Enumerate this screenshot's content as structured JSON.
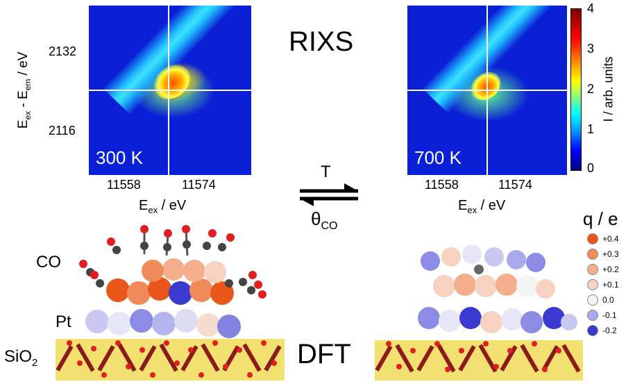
{
  "rixs": {
    "title": "RIXS",
    "panels": [
      {
        "temperature": "300 K",
        "x_ticks": [
          "11558",
          "11574"
        ],
        "xlabel_main": "E",
        "xlabel_sub": "ex",
        "xlabel_unit": " / eV"
      },
      {
        "temperature": "700 K",
        "x_ticks": [
          "11558",
          "11574"
        ],
        "xlabel_main": "E",
        "xlabel_sub": "ex",
        "xlabel_unit": " / eV"
      }
    ],
    "y_ticks": [
      "2132",
      "2116"
    ],
    "ylabel": {
      "e1": "E",
      "s1": "ex",
      "mid": " - E",
      "s2": "em",
      "unit": " / eV"
    },
    "colorbar": {
      "ticks": [
        "4",
        "3",
        "2",
        "1",
        "0"
      ],
      "label": "I / arb. units",
      "colors": [
        "#000080",
        "#0000ff",
        "#00a0ff",
        "#00ffff",
        "#80ff80",
        "#ffff00",
        "#ff8000",
        "#ff0000",
        "#800000"
      ]
    }
  },
  "equilibrium": {
    "forward": "T",
    "reverse_main": "θ",
    "reverse_sub": "CO"
  },
  "dft": {
    "title": "DFT",
    "labels": {
      "co": "CO",
      "pt": "Pt",
      "sio2_main": "SiO",
      "sio2_sub": "2"
    }
  },
  "charge_legend": {
    "title": "q / e",
    "items": [
      {
        "label": "+0.4",
        "color": "#e8561a"
      },
      {
        "label": "+0.3",
        "color": "#f08a5a"
      },
      {
        "label": "+0.2",
        "color": "#f4ae8c"
      },
      {
        "label": "+0.1",
        "color": "#f7d2c0"
      },
      {
        "label": "0.0",
        "color": "#f4f4f4"
      },
      {
        "label": "-0.1",
        "color": "#a9aaee"
      },
      {
        "label": "-0.2",
        "color": "#3a3ad0"
      }
    ]
  }
}
